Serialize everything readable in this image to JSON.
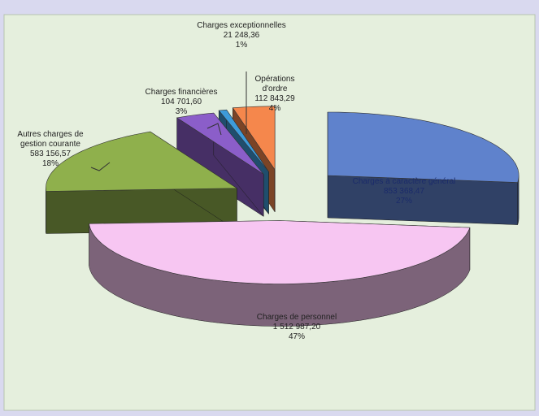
{
  "chart_data": {
    "type": "pie3d",
    "categories": [
      "Charges à caractère général",
      "Charges de personnel",
      "Autres charges de\ngestion courante",
      "Charges financières",
      "Charges exceptionnelles",
      "Opérations\nd'ordre"
    ],
    "values": [
      853368.47,
      1512987.2,
      583156.57,
      104701.6,
      21248.36,
      112843.29
    ],
    "value_labels": [
      "853 368,47",
      "1 512 987,20",
      "583 156,57",
      "104 701,60",
      "21 248,36",
      "112 843,29"
    ],
    "percents": [
      27,
      47,
      18,
      3,
      1,
      4
    ],
    "percent_labels": [
      "27%",
      "47%",
      "18%",
      "3%",
      "1%",
      "4%"
    ],
    "colors": [
      "#5f82cc",
      "#f7c6f2",
      "#8fb04c",
      "#8b5ec9",
      "#3d9bd9",
      "#f5874c"
    ]
  }
}
